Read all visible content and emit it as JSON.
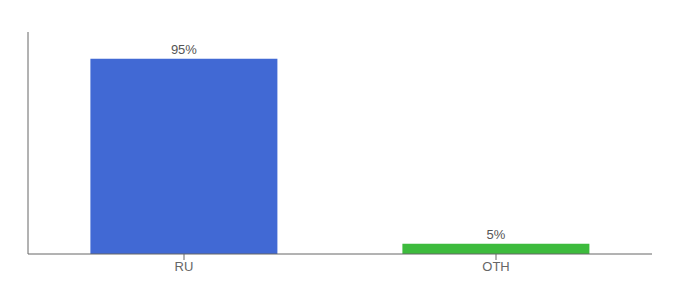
{
  "chart_data": {
    "type": "bar",
    "categories": [
      "RU",
      "OTH"
    ],
    "values": [
      95,
      5
    ],
    "value_labels": [
      "95%",
      "5%"
    ],
    "colors": [
      "#4169d4",
      "#3dbb3d"
    ],
    "ylim": [
      0,
      108
    ],
    "data_labels": true,
    "tick_labels": "x"
  }
}
